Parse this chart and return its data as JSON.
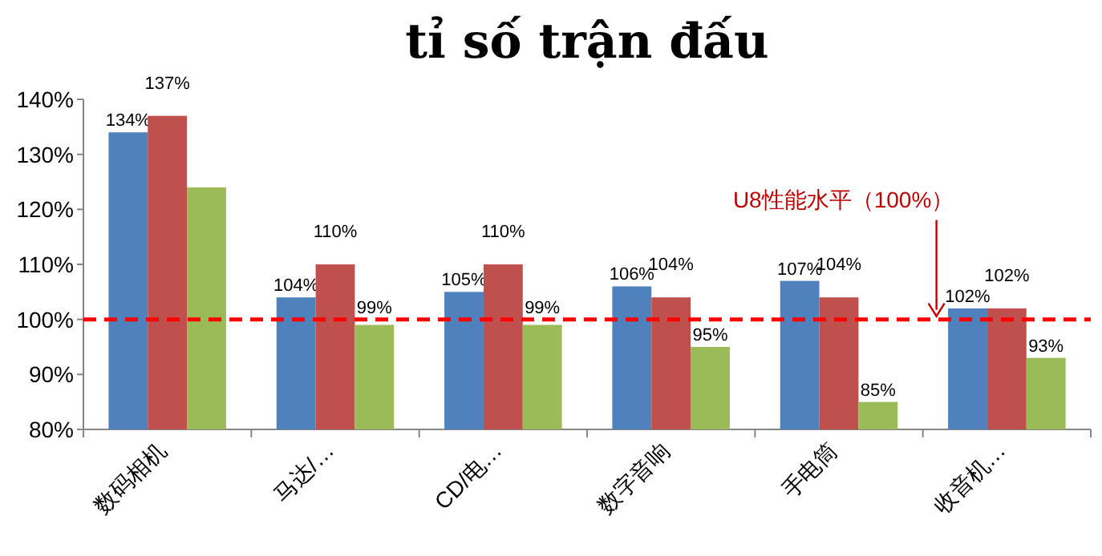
{
  "chart_data": {
    "type": "bar",
    "title": "tỉ số trận đấu",
    "categories": [
      "数码相机",
      "马达/…",
      "CD/电…",
      "数字音响",
      "手电筒",
      "收音机…"
    ],
    "series": [
      {
        "color": "#4f81bd",
        "values": [
          134,
          104,
          105,
          106,
          107,
          102
        ],
        "value_labels": [
          "134%",
          "104%",
          "105%",
          "106%",
          "107%",
          "102%"
        ]
      },
      {
        "color": "#c0504d",
        "values": [
          137,
          110,
          110,
          104,
          104,
          102
        ],
        "value_labels": [
          "137%",
          "110%",
          "110%",
          "104%",
          "104%",
          "102%"
        ]
      },
      {
        "color": "#9bbb59",
        "values": [
          124,
          99,
          99,
          95,
          85,
          93
        ],
        "value_labels": [
          null,
          "99%",
          "99%",
          "95%",
          "85%",
          "93%"
        ]
      }
    ],
    "ylim": [
      80,
      140
    ],
    "yticks": [
      {
        "value": 80,
        "label": "80%"
      },
      {
        "value": 90,
        "label": "90%"
      },
      {
        "value": 100,
        "label": "100%"
      },
      {
        "value": 110,
        "label": "110%"
      },
      {
        "value": 120,
        "label": "120%"
      },
      {
        "value": 130,
        "label": "130%"
      },
      {
        "value": 140,
        "label": "140%"
      }
    ],
    "ref_lines": [
      {
        "axis": "y",
        "value": 100,
        "label": "U8性能水平（100%）",
        "color": "#ff0000",
        "line_style": "dashed"
      }
    ],
    "grid": false
  }
}
